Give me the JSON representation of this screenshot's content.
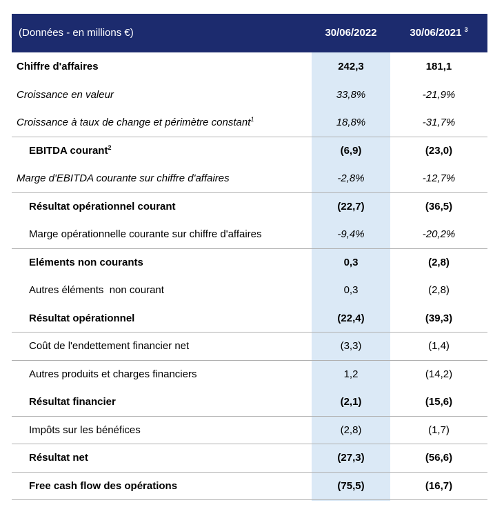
{
  "header": {
    "label": "(Données - en millions €)",
    "columns": [
      {
        "text": "30/06/2022"
      },
      {
        "text": "30/06/2021",
        "note": "3"
      }
    ]
  },
  "table": {
    "rows": [
      {
        "label": "Chiffre d'affaires",
        "values": [
          "242,3",
          "181,1"
        ]
      },
      {
        "label": "Croissance en valeur",
        "values": [
          "33,8%",
          "-21,9%"
        ]
      },
      {
        "label": "Croissance à taux de change et périmètre constant",
        "note": "1",
        "values": [
          "18,8%",
          "-31,7%"
        ]
      },
      {
        "label": "EBITDA courant",
        "note": "2",
        "values": [
          "(6,9)",
          "(23,0)"
        ]
      },
      {
        "label": "Marge d'EBITDA courante sur chiffre d'affaires",
        "values": [
          "-2,8%",
          "-12,7%"
        ]
      },
      {
        "label": "Résultat opérationnel courant",
        "values": [
          "(22,7)",
          "(36,5)"
        ]
      },
      {
        "label": "Marge opérationnelle courante sur chiffre d'affaires",
        "values": [
          "-9,4%",
          "-20,2%"
        ]
      },
      {
        "label": "Eléments non courants",
        "values": [
          "0,3",
          "(2,8)"
        ]
      },
      {
        "label": "Autres éléments  non courant",
        "values": [
          "0,3",
          "(2,8)"
        ]
      },
      {
        "label": "Résultat opérationnel",
        "values": [
          "(22,4)",
          "(39,3)"
        ]
      },
      {
        "label": "Coût de l'endettement financier net",
        "values": [
          "(3,3)",
          "(1,4)"
        ]
      },
      {
        "label": "Autres produits et charges financiers",
        "values": [
          "1,2",
          "(14,2)"
        ]
      },
      {
        "label": "Résultat financier",
        "values": [
          "(2,1)",
          "(15,6)"
        ]
      },
      {
        "label": "Impôts sur les bénéfices",
        "values": [
          "(2,8)",
          "(1,7)"
        ]
      },
      {
        "label": "Résultat net",
        "values": [
          "(27,3)",
          "(56,6)"
        ]
      },
      {
        "label": "Free cash flow des opérations",
        "values": [
          "(75,5)",
          "(16,7)"
        ]
      }
    ]
  }
}
